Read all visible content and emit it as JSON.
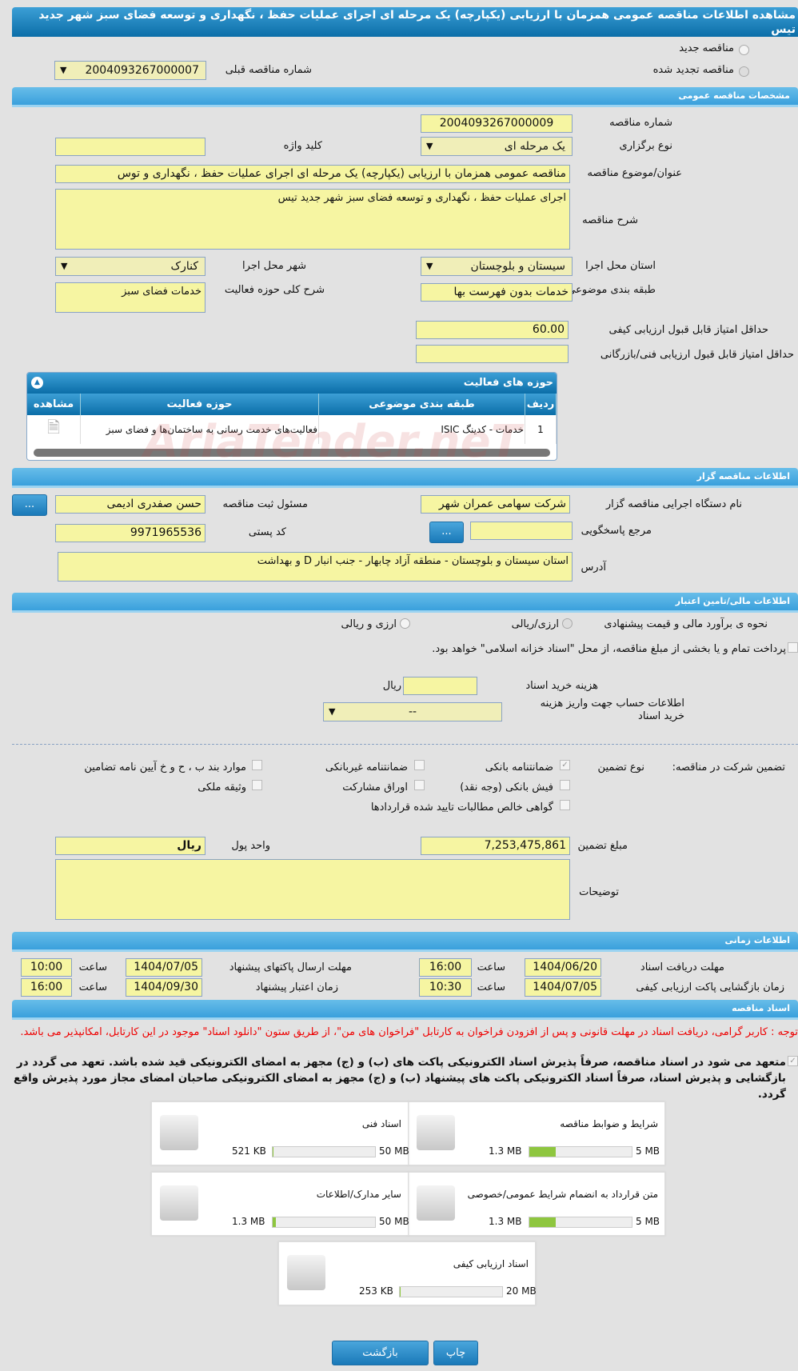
{
  "title": "مشاهده اطلاعات مناقصه عمومی همزمان با ارزیابی (یکپارچه) یک مرحله ای اجرای عملیات حفظ ، نگهداری و توسعه فضای سبز شهر جدید تیس",
  "top": {
    "new_tender": "مناقصه جدید",
    "renewed_tender": "مناقصه تجدید شده",
    "prev_number_label": "شماره مناقصه قبلی",
    "prev_number": "2004093267000007"
  },
  "general": {
    "header": "مشخصات مناقصه عمومی",
    "number_label": "شماره مناقصه",
    "number": "2004093267000009",
    "type_label": "نوع برگزاری",
    "type": "یک مرحله ای",
    "keyword_label": "کلید واژه",
    "keyword": "",
    "subject_label": "عنوان/موضوع مناقصه",
    "subject": "مناقصه عمومی همزمان با ارزیابی (یکپارچه) یک مرحله ای اجرای عملیات حفظ ، نگهداری و توس",
    "desc_label": "شرح مناقصه",
    "desc": "اجرای عملیات حفظ ، نگهداری و توسعه فضای سبز شهر جدید تیس",
    "province_label": "استان محل اجرا",
    "province": "سیستان و بلوچستان",
    "city_label": "شهر محل اجرا",
    "city": "کنارک",
    "category_label": "طبقه بندی موضوعی",
    "category": "خدمات بدون فهرست بها",
    "activity_desc_label": "شرح کلی حوزه فعالیت",
    "activity_desc": "خدمات فضای سبز",
    "min_quality_label": "حداقل امتیاز قابل قبول ارزیابی کیفی",
    "min_quality": "60.00",
    "min_tech_label": "حداقل امتیاز قابل قبول ارزیابی فنی/بازرگانی",
    "min_tech": ""
  },
  "activities": {
    "header": "حوزه های فعالیت",
    "columns": [
      "ردیف",
      "طبقه بندی موضوعی",
      "حوزه فعالیت",
      "مشاهده"
    ],
    "rows": [
      {
        "row": "1",
        "category": "خدمات - کدینگ ISIC",
        "field": "فعالیت‌های خدمت رسانی به ساختمان‌ها و فضای سبز"
      }
    ]
  },
  "watermark": "AriaTender.neT",
  "organizer": {
    "header": "اطلاعات مناقصه گزار",
    "org_label": "نام دستگاه اجرایی مناقصه گزار",
    "org": "شرکت سهامی عمران شهر",
    "registrar_label": "مسئول ثبت مناقصه",
    "registrar": "حسن صفدری ادیمی",
    "ref_label": "مرجع پاسخگویی",
    "ref": "",
    "postal_label": "کد پستی",
    "postal": "9971965536",
    "address_label": "آدرس",
    "address": "استان سیستان و بلوچستان - منطقه آزاد چابهار - جنب انبار D و بهداشت",
    "more": "..."
  },
  "finance": {
    "header": "اطلاعات مالی/تامین اعتبار",
    "method_label": "نحوه ی برآورد مالی و قیمت پیشنهادی",
    "opt1": "ارزی/ریالی",
    "opt2": "ارزی و ریالی",
    "treasury": "پرداخت تمام و یا بخشی از مبلغ مناقصه، از محل \"اسناد خزانه اسلامی\" خواهد بود.",
    "doc_fee_label": "هزینه خرید اسناد",
    "doc_fee": "",
    "currency": "ریال",
    "account_label": "اطلاعات حساب جهت واریز هزینه خرید اسناد",
    "account": "--"
  },
  "guarantee": {
    "label": "تضمین شرکت در مناقصه:",
    "type_label": "نوع تضمین",
    "options": [
      {
        "label": "ضمانتنامه بانکی",
        "checked": true
      },
      {
        "label": "ضمانتنامه غیربانکی",
        "checked": false
      },
      {
        "label": "موارد بند ب ، ح و خ آیین نامه تضامین",
        "checked": false
      },
      {
        "label": "فیش بانکی (وجه نقد)",
        "checked": false
      },
      {
        "label": "اوراق مشارکت",
        "checked": false
      },
      {
        "label": "وثیقه ملکی",
        "checked": false
      },
      {
        "label": "گواهی خالص مطالبات تایید شده قراردادها",
        "checked": false
      }
    ],
    "amount_label": "مبلغ تضمین",
    "amount": "7,253,475,861",
    "unit_label": "واحد پول",
    "unit": "ریال",
    "notes_label": "توضیحات",
    "notes": ""
  },
  "timing": {
    "header": "اطلاعات زمانی",
    "receive_label": "مهلت دریافت اسناد",
    "receive_date": "1404/06/20",
    "receive_time": "16:00",
    "send_label": "مهلت ارسال پاکتهای پیشنهاد",
    "send_date": "1404/07/05",
    "send_time": "10:00",
    "open_label": "زمان بازگشایی پاکت ارزیابی کیفی",
    "open_date": "1404/07/05",
    "open_time": "10:30",
    "valid_label": "زمان اعتبار پیشنهاد",
    "valid_date": "1404/09/30",
    "valid_time": "16:00",
    "time_label": "ساعت"
  },
  "documents": {
    "header": "اسناد مناقصه",
    "notice": "توجه : کاربر گرامی، دریافت اسناد در مهلت قانونی و پس از افزودن فراخوان به کارتابل \"فراخوان های من\"، از طریق ستون \"دانلود اسناد\" موجود در این کارتابل، امکانپذیر می باشد.",
    "commitment": "متعهد می شود در اسناد مناقصه، صرفاً پذیرش اسناد الکترونیکی پاکت های (ب) و (ج) مجهز به امضای الکترونیکی قید شده باشد. تعهد می گردد در بازگشایی و پذیرش اسناد، صرفاً اسناد الکترونیکی پاکت های پیشنهاد (ب) و (ج) مجهز به امضای الکترونیکی صاحبان امضای مجاز مورد پذیرش واقع گردد.",
    "files": [
      {
        "name": "شرایط و ضوابط مناقصه",
        "size": "1.3 MB",
        "max": "5 MB",
        "fill_percent": 26
      },
      {
        "name": "اسناد فنی",
        "size": "521 KB",
        "max": "50 MB",
        "fill_percent": 1
      },
      {
        "name": "متن قرارداد به انضمام شرایط عمومی/خصوصی",
        "size": "1.3 MB",
        "max": "5 MB",
        "fill_percent": 26
      },
      {
        "name": "سایر مدارک/اطلاعات",
        "size": "1.3 MB",
        "max": "50 MB",
        "fill_percent": 3
      },
      {
        "name": "اسناد ارزیابی کیفی",
        "size": "253 KB",
        "max": "20 MB",
        "fill_percent": 1
      }
    ]
  },
  "buttons": {
    "print": "چاپ",
    "back": "بازگشت"
  }
}
